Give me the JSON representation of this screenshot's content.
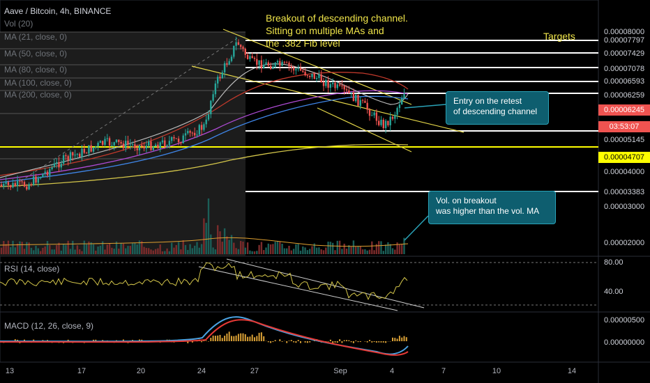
{
  "header": {
    "title": "Aave / Bitcoin, 4h, BINANCE",
    "indicators": [
      "Vol (20)",
      "MA (21, close, 0)",
      "MA (50, close, 0)",
      "MA (80, close, 0)",
      "MA (100, close, 0)",
      "MA (200, close, 0)"
    ]
  },
  "annotations": {
    "breakout": [
      "Breakout of descending channel.",
      "Sitting on multiple MAs and",
      "the .382 Fib level"
    ],
    "targets": "Targets",
    "entry": [
      "Entry on the retest",
      "of descending channel"
    ],
    "volume": [
      "Vol. on breakout",
      "was higher than the vol. MA"
    ]
  },
  "price_axis": {
    "labels": [
      "0.00008000",
      "0.00007797",
      "0.00007429",
      "0.00007078",
      "0.00006593",
      "0.00006259",
      "0.00005145",
      "0.00004000",
      "0.00003383",
      "0.00003000",
      "0.00002000"
    ],
    "current_price": "0.00006245",
    "countdown": "03:53:07",
    "fib_level": "0.00004707"
  },
  "panes": {
    "rsi": {
      "label": "RSI (14, close)",
      "ticks": [
        "80.00",
        "40.00"
      ]
    },
    "macd": {
      "label": "MACD (12, 26, close, 9)",
      "ticks": [
        "0.00000500",
        "0.00000000"
      ]
    }
  },
  "time_axis": {
    "labels": [
      "13",
      "17",
      "20",
      "24",
      "27",
      "Sep",
      "4",
      "7",
      "10",
      "14"
    ]
  },
  "colors": {
    "background": "#000000",
    "up": "#26a69a",
    "down": "#ef5350",
    "annotation": "#f0e54a",
    "callout": "#0e5e6f",
    "current_price_tag": "#ef5350",
    "fib_tag": "#ffff00"
  }
}
